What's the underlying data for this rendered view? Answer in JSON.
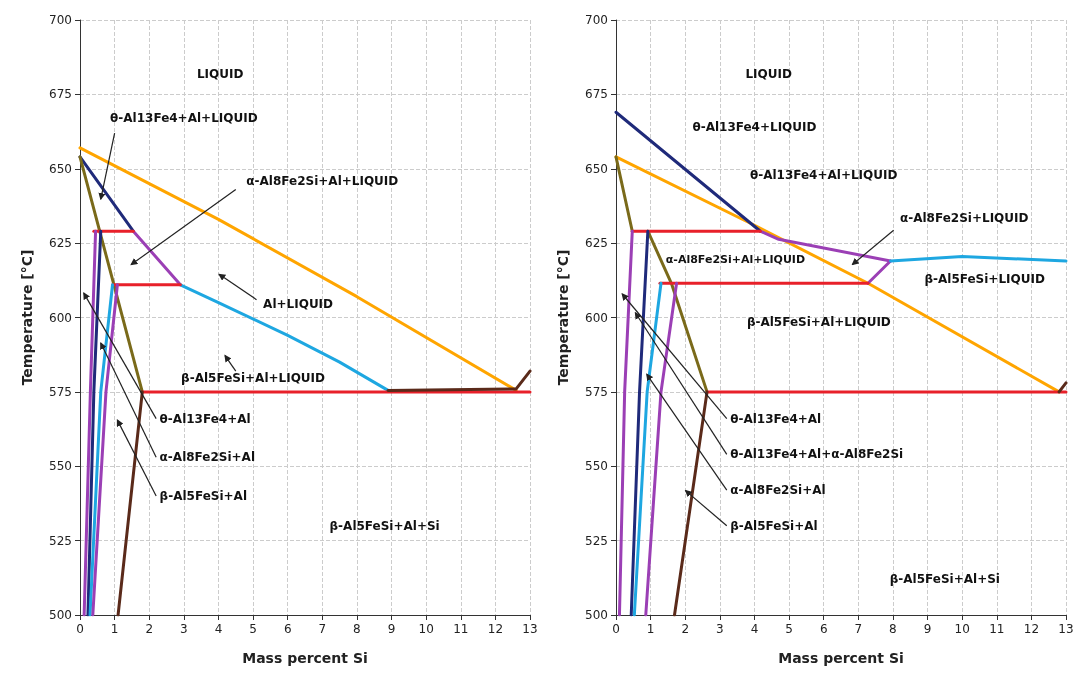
{
  "chart_data": [
    {
      "type": "line",
      "xlabel": "Mass percent Si",
      "ylabel": "Temperature [°C]",
      "xlim": [
        0,
        13
      ],
      "xticks": [
        0,
        1,
        2,
        3,
        4,
        5,
        6,
        7,
        8,
        9,
        10,
        11,
        12,
        13
      ],
      "ylim": [
        500,
        700
      ],
      "yticks": [
        500,
        525,
        550,
        575,
        600,
        625,
        650,
        675,
        700
      ],
      "grid": true,
      "marker": "none",
      "line_style": "solid",
      "series": [
        {
          "color": "#ffa500",
          "x": [
            0,
            4,
            8,
            12.6
          ],
          "values": [
            657,
            633,
            607,
            575.5
          ]
        },
        {
          "color": "#1f2a7a",
          "x": [
            0,
            1.54
          ],
          "values": [
            654,
            629
          ]
        },
        {
          "color": "#9b3fb5",
          "x": [
            1.54,
            2.9
          ],
          "values": [
            629,
            611
          ]
        },
        {
          "color": "#1ea7e1",
          "x": [
            2.9,
            4,
            6,
            7.5,
            8.9
          ],
          "values": [
            611,
            605,
            594,
            585,
            575.5
          ]
        },
        {
          "color": "#7a6a1a",
          "x": [
            0,
            1.8
          ],
          "values": [
            654,
            575
          ]
        },
        {
          "color": "#e8202a",
          "x": [
            0.4,
            1.54
          ],
          "values": [
            629,
            629
          ]
        },
        {
          "color": "#e8202a",
          "x": [
            0.94,
            2.9
          ],
          "values": [
            611,
            611
          ]
        },
        {
          "color": "#e8202a",
          "x": [
            1.8,
            13
          ],
          "values": [
            575,
            575
          ]
        },
        {
          "color": "#9b3fb5",
          "x": [
            0.12,
            0.3,
            0.45
          ],
          "values": [
            500,
            575,
            629
          ]
        },
        {
          "color": "#1f2a7a",
          "x": [
            0.23,
            0.4,
            0.6
          ],
          "values": [
            500,
            575,
            629
          ]
        },
        {
          "color": "#1ea7e1",
          "x": [
            0.29,
            0.6,
            0.94
          ],
          "values": [
            500,
            575,
            611
          ]
        },
        {
          "color": "#9b3fb5",
          "x": [
            0.37,
            0.75,
            1.08
          ],
          "values": [
            500,
            575,
            611
          ]
        },
        {
          "color": "#5a2a1a",
          "x": [
            1.1,
            1.8
          ],
          "values": [
            500,
            575
          ]
        },
        {
          "color": "#5a2a1a",
          "x": [
            8.9,
            12.6,
            13
          ],
          "values": [
            575.5,
            576,
            582
          ]
        }
      ],
      "annotations": [
        "LIQUID",
        "θ-Al13Fe4+Al+LIQUID",
        "α-Al8Fe2Si+Al+LIQUID",
        "θ-Al13Fe4+Al",
        "Al+LIQUID",
        {
          "text": "α-Al8Fe2Si+Al",
          "x": 0.6,
          "y": 591.4
        },
        "β-Al5FeSi+Al+LIQUID",
        "β-Al5FeSi+Al",
        "β-Al5FeSi+Al+Si"
      ]
    },
    {
      "type": "line",
      "xlabel": "Mass percent Si",
      "ylabel": "Temperature [°C]",
      "xlim": [
        0,
        13
      ],
      "xticks": [
        0,
        1,
        2,
        3,
        4,
        5,
        6,
        7,
        8,
        9,
        10,
        11,
        12,
        13
      ],
      "ylim": [
        500,
        700
      ],
      "yticks": [
        500,
        525,
        550,
        575,
        600,
        625,
        650,
        675,
        700
      ],
      "grid": true,
      "marker": "none",
      "line_style": "solid",
      "series": [
        {
          "color": "#ffa500",
          "x": [
            0,
            4,
            7.28,
            12.8
          ],
          "values": [
            654,
            631,
            611.5,
            575
          ]
        },
        {
          "color": "#1f2a7a",
          "x": [
            0,
            4.17
          ],
          "values": [
            669,
            629
          ]
        },
        {
          "color": "#9b3fb5",
          "x": [
            4.17,
            4.7,
            7.93
          ],
          "values": [
            629,
            626.3,
            619
          ]
        },
        {
          "color": "#9b3fb5",
          "x": [
            7.93,
            7.28
          ],
          "values": [
            619,
            611.5
          ]
        },
        {
          "color": "#1ea7e1",
          "x": [
            7.93,
            10,
            13
          ],
          "values": [
            619,
            620.5,
            619
          ]
        },
        {
          "color": "#7a6a1a",
          "x": [
            0,
            0.47
          ],
          "values": [
            654,
            629
          ]
        },
        {
          "color": "#7a6a1a",
          "x": [
            0.92,
            1.6,
            2.63
          ],
          "values": [
            629,
            611.5,
            575
          ]
        },
        {
          "color": "#e8202a",
          "x": [
            0.47,
            4.17
          ],
          "values": [
            629,
            629
          ]
        },
        {
          "color": "#e8202a",
          "x": [
            1.27,
            7.28
          ],
          "values": [
            611.5,
            611.5
          ]
        },
        {
          "color": "#e8202a",
          "x": [
            2.63,
            13
          ],
          "values": [
            575,
            575
          ]
        },
        {
          "color": "#9b3fb5",
          "x": [
            0.1,
            0.25,
            0.47
          ],
          "values": [
            500,
            575,
            629
          ]
        },
        {
          "color": "#1f2a7a",
          "x": [
            0.44,
            0.68,
            0.92
          ],
          "values": [
            500,
            575,
            629
          ]
        },
        {
          "color": "#1ea7e1",
          "x": [
            0.53,
            0.9,
            1.3
          ],
          "values": [
            500,
            575,
            611.5
          ]
        },
        {
          "color": "#9b3fb5",
          "x": [
            0.86,
            1.3,
            1.75
          ],
          "values": [
            500,
            575,
            611.5
          ]
        },
        {
          "color": "#5a2a1a",
          "x": [
            1.69,
            2.63
          ],
          "values": [
            500,
            575
          ]
        },
        {
          "color": "#5a2a1a",
          "x": [
            12.8,
            13
          ],
          "values": [
            575,
            578
          ]
        }
      ],
      "annotations": [
        "LIQUID",
        "θ-Al13Fe4+LIQUID",
        "θ-Al13Fe4+Al+LIQUID",
        "α-Al8Fe2Si+LIQUID",
        "α-Al8Fe2Si+Al+LIQUID",
        "θ-Al13Fe4+Al",
        "β-Al5FeSi+LIQUID",
        "θ-Al13Fe4+Al+α-Al8Fe2Si",
        "β-Al5FeSi+Al+LIQUID",
        {
          "text": "α-Al8Fe2Si+Al",
          "x": 0.89,
          "y": 580.9
        },
        "β-Al5FeSi+Al",
        "β-Al5FeSi+Al+Si"
      ]
    }
  ]
}
